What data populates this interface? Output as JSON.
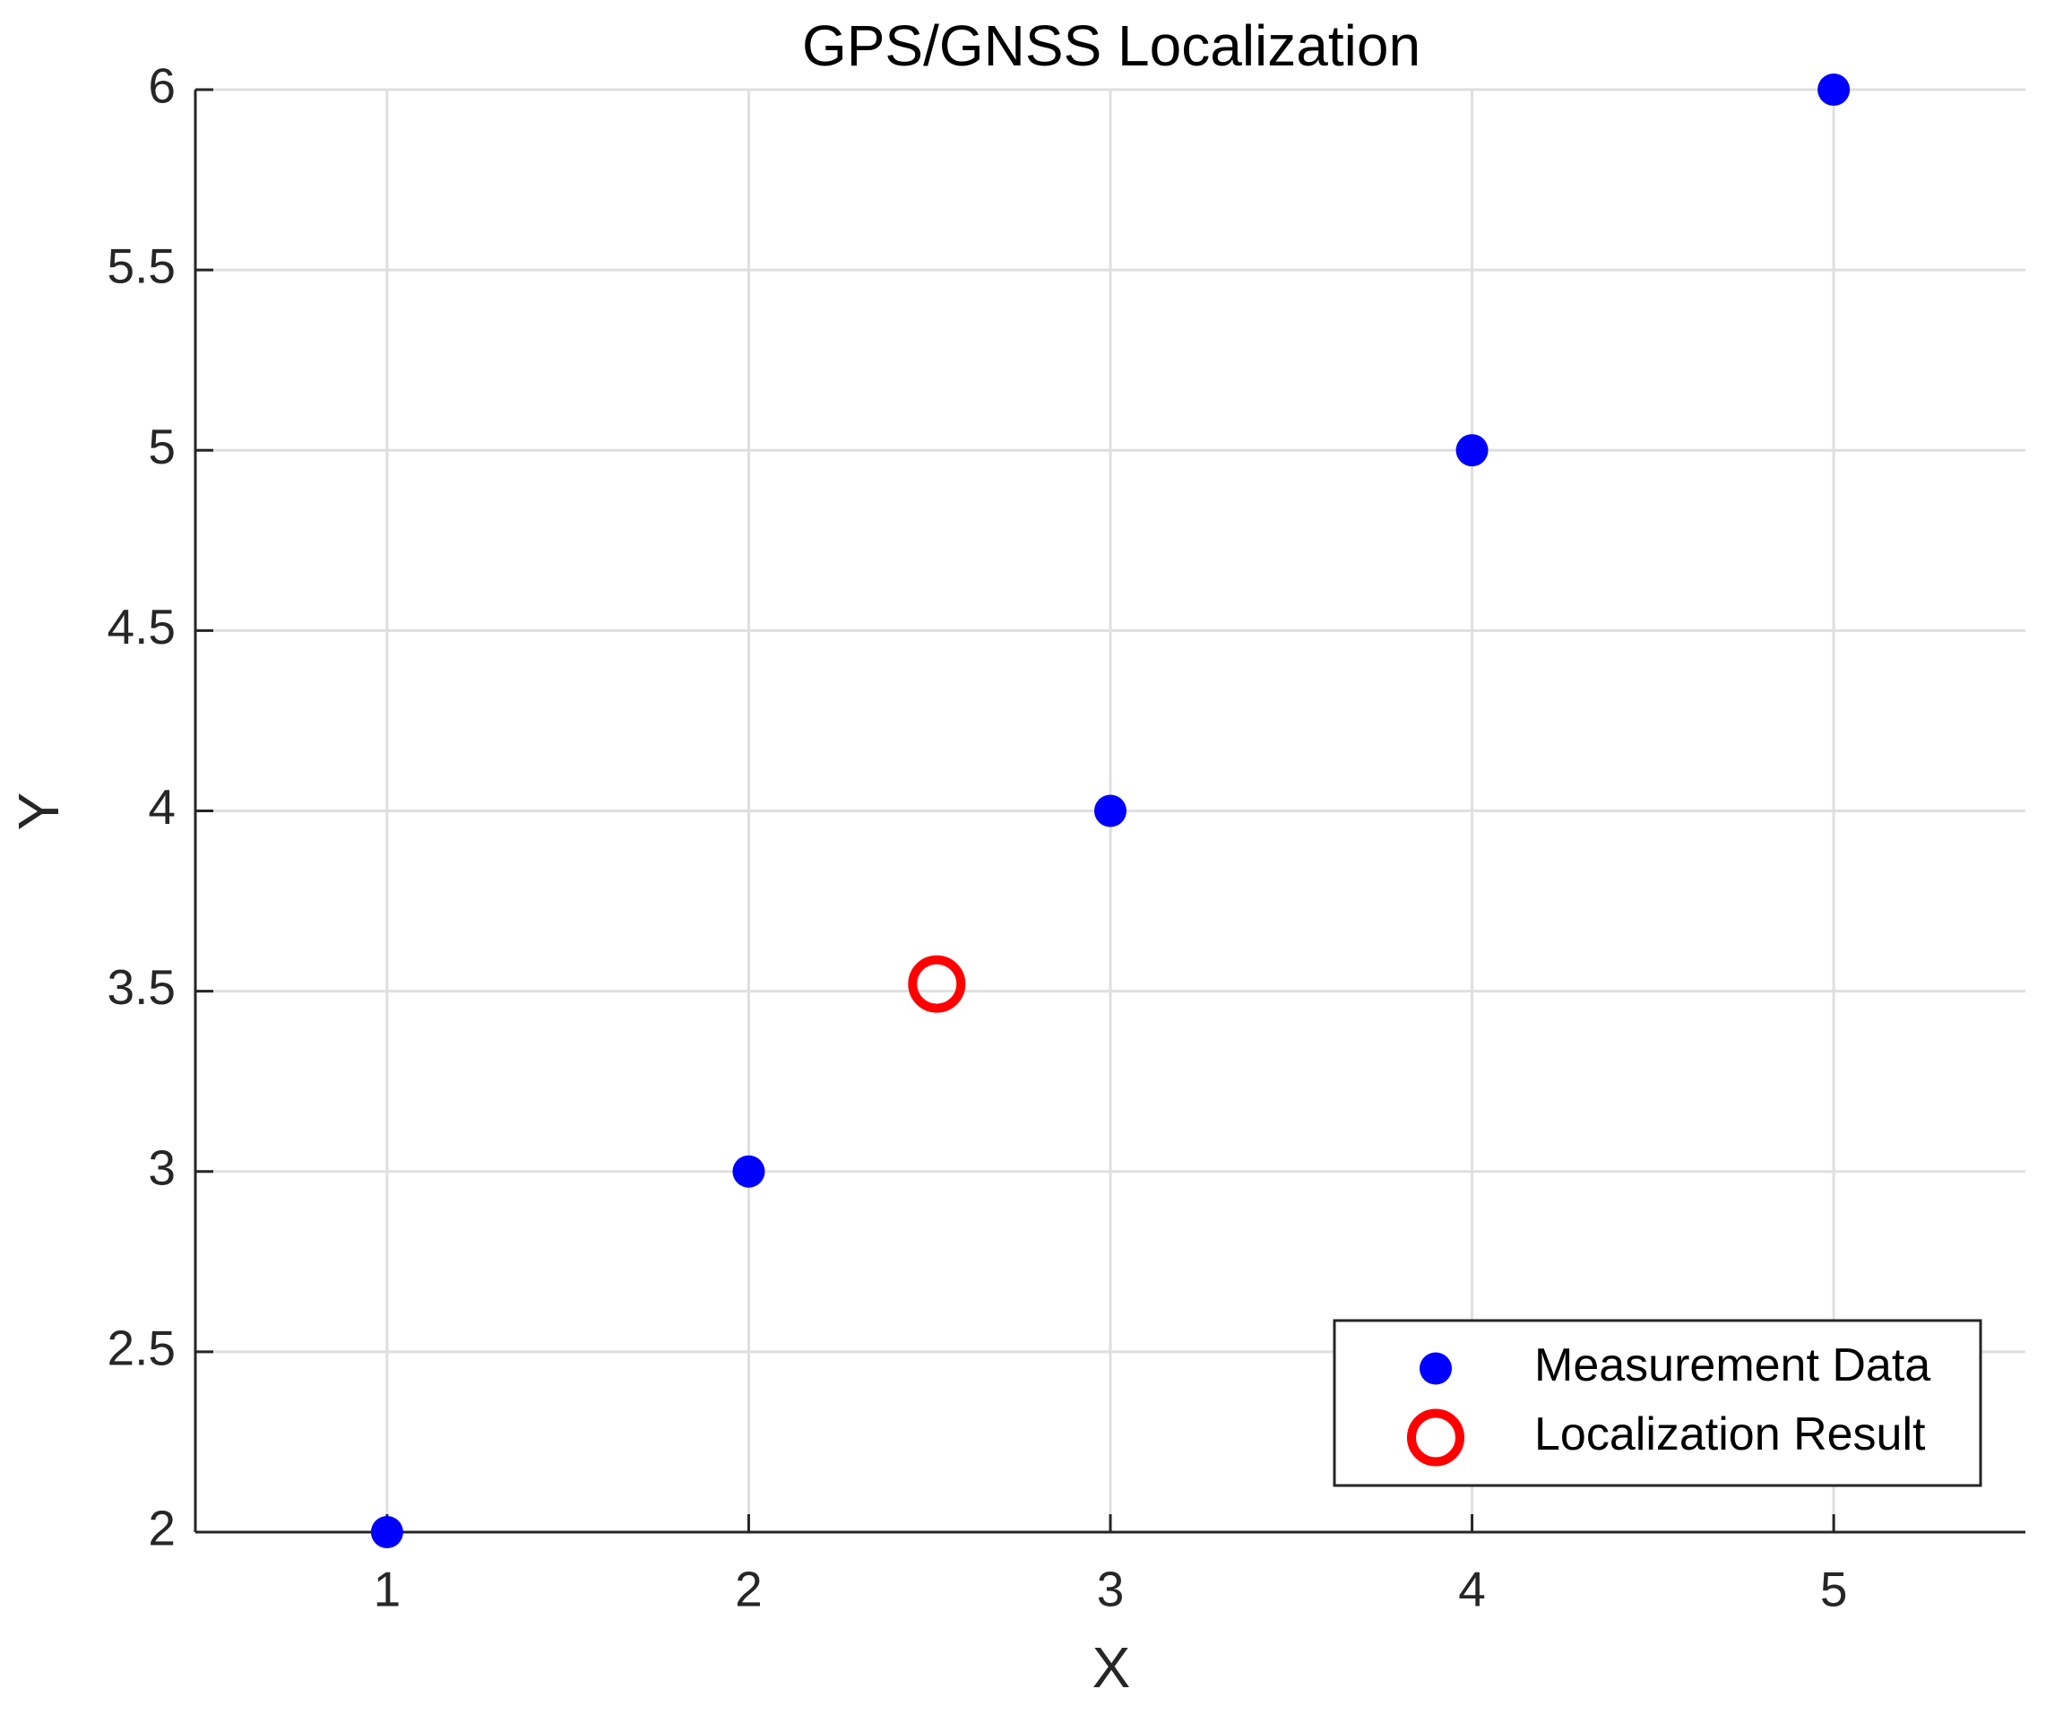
{
  "chart_data": {
    "type": "scatter",
    "title": "GPS/GNSS Localization",
    "x_label": "X",
    "y_label": "Y",
    "series": [
      {
        "name": "Measurement Data",
        "color": "#0000ff",
        "filled": true,
        "x": [
          1,
          2,
          3,
          4,
          5
        ],
        "values": [
          2,
          3,
          4,
          5,
          6
        ]
      },
      {
        "name": "Localization Result",
        "color": "#ff0000",
        "filled": false,
        "x": [
          2.52
        ],
        "values": [
          3.52
        ]
      }
    ],
    "xlim": [
      0.47,
      5.53
    ],
    "ylim": [
      2,
      6
    ],
    "xticks": [
      1,
      2,
      3,
      4,
      5
    ],
    "yticks": [
      2,
      2.5,
      3,
      3.5,
      4,
      4.5,
      5,
      5.5,
      6
    ],
    "grid": true,
    "legend": "lower right"
  }
}
